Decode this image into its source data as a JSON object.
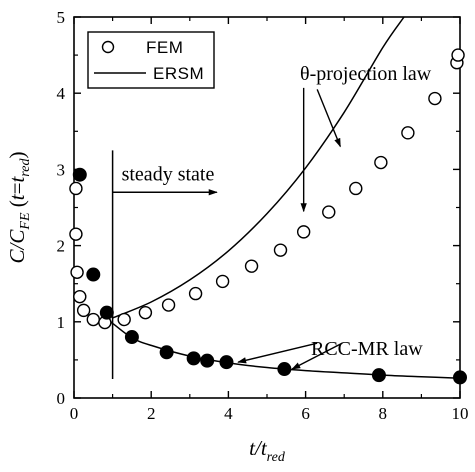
{
  "chart_data": {
    "type": "scatter",
    "xlim": [
      0,
      10
    ],
    "ylim": [
      0,
      5
    ],
    "x_ticks": [
      "0",
      "2",
      "4",
      "6",
      "8",
      "10"
    ],
    "y_ticks": [
      "0",
      "1",
      "2",
      "3",
      "4",
      "5"
    ],
    "xlabel": {
      "main": "t/t",
      "sub": "red"
    },
    "ylabel": {
      "main": "C/C",
      "sub": "FE",
      "paren_open": " (",
      "var": "t",
      "eq": "=",
      "rhs": "t",
      "rhs_sub": "red",
      "paren_close": ")"
    },
    "legend": {
      "position": "top-left",
      "items": [
        "FEM",
        "ERSM"
      ]
    },
    "series": [
      {
        "name": "FEM",
        "marker": "open-circle",
        "points": [
          [
            0.05,
            2.75
          ],
          [
            0.05,
            2.15
          ],
          [
            0.08,
            1.65
          ],
          [
            0.15,
            1.33
          ],
          [
            0.25,
            1.15
          ],
          [
            0.5,
            1.03
          ],
          [
            0.8,
            0.99
          ],
          [
            1.3,
            1.03
          ],
          [
            1.85,
            1.12
          ],
          [
            2.45,
            1.22
          ],
          [
            3.15,
            1.37
          ],
          [
            3.85,
            1.53
          ],
          [
            4.6,
            1.73
          ],
          [
            5.35,
            1.94
          ],
          [
            5.95,
            2.18
          ],
          [
            6.6,
            2.44
          ],
          [
            7.3,
            2.75
          ],
          [
            7.95,
            3.09
          ],
          [
            8.65,
            3.48
          ],
          [
            9.35,
            3.93
          ],
          [
            9.92,
            4.4
          ],
          [
            9.95,
            4.5
          ]
        ]
      },
      {
        "name": "RCC-MR points",
        "marker": "filled-circle",
        "points": [
          [
            0.15,
            2.93
          ],
          [
            0.5,
            1.62
          ],
          [
            0.85,
            1.12
          ],
          [
            1.5,
            0.8
          ],
          [
            2.4,
            0.6
          ],
          [
            3.1,
            0.52
          ],
          [
            3.45,
            0.49
          ],
          [
            3.95,
            0.47
          ],
          [
            5.45,
            0.38
          ],
          [
            7.9,
            0.3
          ],
          [
            10.0,
            0.27
          ]
        ]
      },
      {
        "name": "ERSM",
        "marker": "line",
        "segments": [
          [
            [
              1.0,
              1.05
            ],
            [
              2.0,
              1.26
            ],
            [
              3.0,
              1.55
            ],
            [
              4.0,
              1.93
            ],
            [
              5.0,
              2.42
            ],
            [
              6.0,
              3.02
            ],
            [
              7.0,
              3.75
            ],
            [
              8.0,
              4.6
            ],
            [
              8.55,
              5.0
            ]
          ],
          [
            [
              0.7,
              1.1
            ],
            [
              0.85,
              1.05
            ],
            [
              1.0,
              0.98
            ],
            [
              1.5,
              0.79
            ],
            [
              2.0,
              0.69
            ],
            [
              3.0,
              0.55
            ],
            [
              4.0,
              0.46
            ],
            [
              5.0,
              0.4
            ],
            [
              6.0,
              0.36
            ],
            [
              7.0,
              0.33
            ],
            [
              8.0,
              0.3
            ],
            [
              9.0,
              0.28
            ],
            [
              10.0,
              0.26
            ]
          ]
        ]
      }
    ],
    "annotations": [
      {
        "text": "steady state",
        "type": "vline-arrow",
        "x": 1.0,
        "y_from": 0.25,
        "y_to": 3.25,
        "arrow_y": 2.7,
        "arrow_to_x": 3.7
      },
      {
        "text": "θ-projection law",
        "type": "label-arrows",
        "arrows": [
          [
            [
              5.95,
              4.07
            ],
            [
              5.95,
              2.45
            ]
          ],
          [
            [
              6.3,
              4.05
            ],
            [
              6.9,
              3.3
            ]
          ]
        ]
      },
      {
        "text": "RCC-MR law",
        "type": "label-arrows",
        "arrows": [
          [
            [
              6.3,
              0.72
            ],
            [
              4.25,
              0.47
            ]
          ],
          [
            [
              6.95,
              0.72
            ],
            [
              5.65,
              0.38
            ]
          ]
        ]
      }
    ]
  }
}
